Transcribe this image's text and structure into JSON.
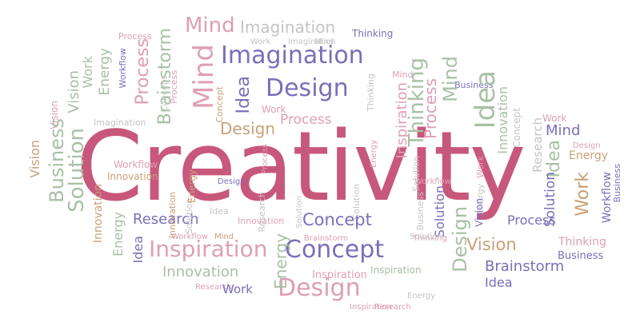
{
  "colors": {
    "pink": "#c8577c",
    "rose": "#de9fb4",
    "purple": "#7a6fb8",
    "lavender": "#a7a0d0",
    "tan": "#caa078",
    "sage": "#a8c0a5",
    "grey": "#c4c4c4"
  },
  "main_word": {
    "text": "Creativity",
    "color": "#c8577c"
  },
  "words": [
    {
      "id": "w1",
      "text": "Mind"
    },
    {
      "id": "w2",
      "text": "Imagination"
    },
    {
      "id": "w3",
      "text": "Process"
    },
    {
      "id": "w4",
      "text": "Thinking"
    },
    {
      "id": "w5",
      "text": "Work"
    },
    {
      "id": "w6",
      "text": "Energy"
    },
    {
      "id": "w7",
      "text": "Vision"
    },
    {
      "id": "w8",
      "text": "Workflow"
    },
    {
      "id": "w9",
      "text": "Brainstorm"
    },
    {
      "id": "w10",
      "text": "Process"
    },
    {
      "id": "w11",
      "text": "Mind"
    },
    {
      "id": "w12",
      "text": "Imagination"
    },
    {
      "id": "w13",
      "text": "Idea"
    },
    {
      "id": "w14",
      "text": "Design"
    },
    {
      "id": "w15",
      "text": "Work"
    },
    {
      "id": "w16",
      "text": "Concept"
    },
    {
      "id": "w17",
      "text": "Process"
    },
    {
      "id": "w18",
      "text": "Thinking"
    },
    {
      "id": "w19",
      "text": "Inspiration"
    },
    {
      "id": "w20",
      "text": "Process"
    },
    {
      "id": "w21",
      "text": "Mind"
    },
    {
      "id": "w22",
      "text": "Idea"
    },
    {
      "id": "w23",
      "text": "Business"
    },
    {
      "id": "w24",
      "text": "Work"
    },
    {
      "id": "w25",
      "text": "Vision"
    },
    {
      "id": "w26",
      "text": "Business"
    },
    {
      "id": "w27",
      "text": "Solution"
    },
    {
      "id": "w28",
      "text": "Vision"
    },
    {
      "id": "w29",
      "text": "Design"
    },
    {
      "id": "w30",
      "text": "Imagination"
    },
    {
      "id": "w31",
      "text": "Innovation"
    },
    {
      "id": "w32",
      "text": "Concept"
    },
    {
      "id": "w33",
      "text": "Research"
    },
    {
      "id": "w34",
      "text": "Mind"
    },
    {
      "id": "w35",
      "text": "Design"
    },
    {
      "id": "w36",
      "text": "Energy"
    },
    {
      "id": "w37",
      "text": "Idea"
    },
    {
      "id": "w38",
      "text": "Work"
    },
    {
      "id": "w39",
      "text": "Workflow"
    },
    {
      "id": "w40",
      "text": "Business"
    },
    {
      "id": "w41",
      "text": "Workflow"
    },
    {
      "id": "w42",
      "text": "Research"
    },
    {
      "id": "w43",
      "text": "Concept"
    },
    {
      "id": "w44",
      "text": "Process"
    },
    {
      "id": "w45",
      "text": "Inspiration"
    },
    {
      "id": "w46",
      "text": "Concept"
    },
    {
      "id": "w47",
      "text": "Vision"
    },
    {
      "id": "w48",
      "text": "Thinking"
    },
    {
      "id": "w49",
      "text": "Brainstorm"
    },
    {
      "id": "w50",
      "text": "Innovation"
    },
    {
      "id": "w51",
      "text": "Design"
    },
    {
      "id": "w52",
      "text": "Work"
    },
    {
      "id": "w53",
      "text": "Idea"
    },
    {
      "id": "w54",
      "text": "Solution"
    },
    {
      "id": "w55",
      "text": "Energy"
    },
    {
      "id": "w56",
      "text": "Innovation"
    },
    {
      "id": "w57",
      "text": "Idea"
    },
    {
      "id": "w58",
      "text": "Business"
    },
    {
      "id": "w59",
      "text": "Solution"
    },
    {
      "id": "w60",
      "text": "Design"
    },
    {
      "id": "w61",
      "text": "Energy"
    },
    {
      "id": "w62",
      "text": "Vision"
    },
    {
      "id": "w63",
      "text": "Solution"
    },
    {
      "id": "w64",
      "text": "Innovation"
    },
    {
      "id": "w65",
      "text": "Energy"
    },
    {
      "id": "w66",
      "text": "Research"
    },
    {
      "id": "w67",
      "text": "Workflow"
    },
    {
      "id": "w68",
      "text": "Mind"
    },
    {
      "id": "w69",
      "text": "Research"
    },
    {
      "id": "w70",
      "text": "Inspiration"
    },
    {
      "id": "w71",
      "text": "Research"
    },
    {
      "id": "w72",
      "text": "Thinking"
    },
    {
      "id": "w73",
      "text": "Solution"
    },
    {
      "id": "w74",
      "text": "Brainstorm"
    },
    {
      "id": "w75",
      "text": "Inspiration"
    },
    {
      "id": "w76",
      "text": "Solution"
    },
    {
      "id": "w77",
      "text": "Business"
    },
    {
      "id": "w78",
      "text": "Energy"
    },
    {
      "id": "w79",
      "text": "Process"
    }
  ]
}
